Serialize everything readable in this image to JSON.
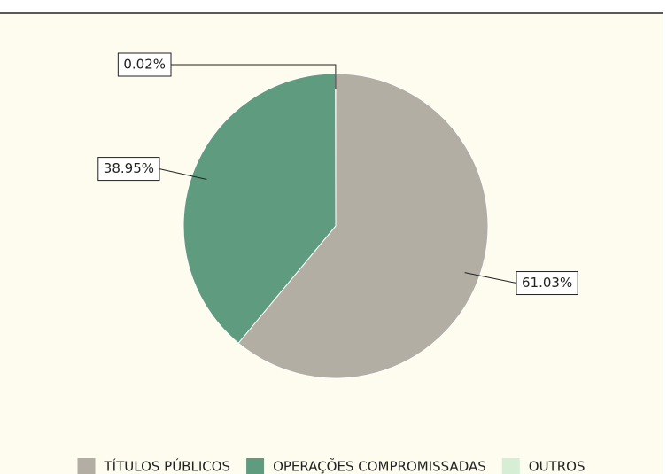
{
  "chart_data": {
    "type": "pie",
    "categories": [
      "TÍTULOS PÚBLICOS",
      "OPERAÇÕES COMPROMISSADAS",
      "OUTROS"
    ],
    "values": [
      61.03,
      38.95,
      0.02
    ],
    "value_labels": [
      "61.03%",
      "38.95%",
      "0.02%"
    ],
    "colors": [
      "#b3aea4",
      "#5f9b7e",
      "#d7eed6"
    ],
    "legend": "bottom"
  }
}
